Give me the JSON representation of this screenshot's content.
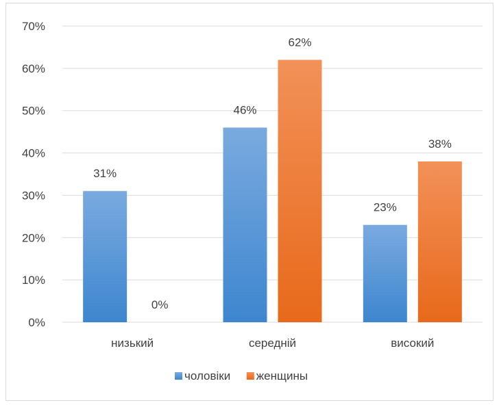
{
  "chart_data": {
    "type": "bar",
    "categories": [
      "низький",
      "середній",
      "високий"
    ],
    "series": [
      {
        "name": "чоловіки",
        "values": [
          31,
          46,
          23
        ],
        "labels": [
          "31%",
          "46%",
          "23%"
        ]
      },
      {
        "name": "женщины",
        "values": [
          0,
          62,
          38
        ],
        "labels": [
          "0%",
          "62%",
          "38%"
        ]
      }
    ],
    "ylim": [
      0,
      70
    ],
    "yticks": [
      0,
      10,
      20,
      30,
      40,
      50,
      60,
      70
    ],
    "ytick_labels": [
      "0%",
      "10%",
      "20%",
      "30%",
      "40%",
      "50%",
      "60%",
      "70%"
    ],
    "grid": true,
    "legend_position": "bottom"
  },
  "colors": {
    "series_0_top": "#7aaadf",
    "series_0_bottom": "#3d86cf",
    "series_1_top": "#f29158",
    "series_1_bottom": "#e8691b",
    "grid": "#d9d9d9",
    "text": "#404040"
  }
}
